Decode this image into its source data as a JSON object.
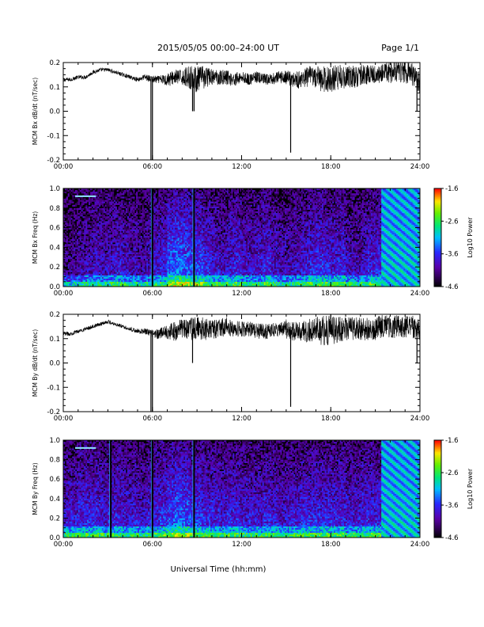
{
  "header": {
    "title": "2015/05/05  00:00–24:00 UT",
    "page": "Page 1/1"
  },
  "footer": {
    "xlabel": "Universal Time (hh:mm)"
  },
  "chart_data": [
    {
      "type": "line",
      "ylabel": "MCM Bx dB/dt (nT/sec)",
      "xlim": [
        0,
        24
      ],
      "ylim": [
        -0.2,
        0.2
      ],
      "x_ticks": [
        "00:00",
        "06:00",
        "12:00",
        "18:00",
        "24:00"
      ],
      "y_ticks": [
        "-0.2",
        "-0.1",
        "0.0",
        "0.1",
        "0.2"
      ],
      "series": [
        {
          "x": [
            0,
            0.5,
            1,
            1.5,
            2,
            2.5,
            3,
            3.5,
            4,
            4.5,
            5,
            5.5,
            6,
            6.5,
            7,
            7.5,
            8,
            8.5,
            9,
            9.5,
            10,
            10.5,
            11,
            11.5,
            12,
            12.5,
            13,
            13.5,
            14,
            14.5,
            15,
            15.5,
            16,
            16.5,
            17,
            17.5,
            18,
            18.5,
            19,
            19.5,
            20,
            20.5,
            21,
            21.5,
            22,
            22.5,
            23,
            23.5,
            24
          ],
          "y": [
            0.13,
            0.13,
            0.14,
            0.14,
            0.16,
            0.17,
            0.17,
            0.16,
            0.15,
            0.14,
            0.13,
            0.14,
            0.13,
            0.13,
            0.13,
            0.14,
            0.14,
            0.14,
            0.13,
            0.14,
            0.14,
            0.14,
            0.14,
            0.13,
            0.14,
            0.13,
            0.14,
            0.13,
            0.13,
            0.14,
            0.14,
            0.13,
            0.13,
            0.14,
            0.14,
            0.13,
            0.13,
            0.14,
            0.14,
            0.14,
            0.15,
            0.15,
            0.15,
            0.16,
            0.16,
            0.17,
            0.16,
            0.15,
            0.12
          ],
          "noise": [
            0.005,
            0.005,
            0.005,
            0.005,
            0.005,
            0.005,
            0.005,
            0.005,
            0.005,
            0.005,
            0.006,
            0.008,
            0.01,
            0.01,
            0.018,
            0.02,
            0.02,
            0.03,
            0.035,
            0.03,
            0.02,
            0.02,
            0.02,
            0.018,
            0.015,
            0.015,
            0.015,
            0.015,
            0.015,
            0.015,
            0.02,
            0.02,
            0.025,
            0.028,
            0.03,
            0.035,
            0.035,
            0.035,
            0.03,
            0.03,
            0.028,
            0.025,
            0.025,
            0.025,
            0.03,
            0.03,
            0.03,
            0.03,
            0.03
          ],
          "spikes": [
            [
              5.9,
              -0.2
            ],
            [
              6.0,
              -0.2
            ],
            [
              8.7,
              0.0
            ],
            [
              8.8,
              0.0
            ],
            [
              15.3,
              -0.17
            ],
            [
              23.8,
              0.0
            ]
          ]
        }
      ]
    },
    {
      "type": "heatmap",
      "ylabel": "MCM Bx Freq (Hz)",
      "xlim": [
        0,
        24
      ],
      "ylim": [
        0,
        1.0
      ],
      "x_ticks": [
        "00:00",
        "06:00",
        "12:00",
        "18:00",
        "24:00"
      ],
      "y_ticks": [
        "0.0",
        "0.2",
        "0.4",
        "0.6",
        "0.8",
        "1.0"
      ],
      "colorbar": {
        "label": "Log10 Power",
        "ticks": [
          "-1.6",
          "-2.6",
          "-3.6",
          "-4.6"
        ],
        "range": [
          -4.6,
          -1.6
        ]
      },
      "time_activity": [
        0.3,
        0.35,
        0.4,
        0.45,
        0.5,
        0.45,
        0.5,
        0.55,
        0.5,
        0.45,
        0.4,
        0.45,
        0.55,
        0.6,
        0.8,
        0.85,
        0.8,
        0.75,
        0.7,
        0.6,
        0.55,
        0.5,
        0.55,
        0.6,
        0.5,
        0.5,
        0.55,
        0.6,
        0.5,
        0.45,
        0.45,
        0.5,
        0.55,
        0.6,
        0.65,
        0.6,
        0.55,
        0.6,
        0.5,
        0.45,
        0.5,
        0.6,
        0.6,
        0.55,
        0.5,
        0.5,
        0.5,
        0.5
      ],
      "artifact_start_h": 21.4,
      "vertical_lines_h": [
        6.0,
        8.8
      ],
      "tone": {
        "x0_h": 0.8,
        "x1_h": 2.2,
        "freq_hz": 0.92
      }
    },
    {
      "type": "line",
      "ylabel": "MCM By dB/dt (nT/sec)",
      "xlim": [
        0,
        24
      ],
      "ylim": [
        -0.2,
        0.2
      ],
      "x_ticks": [
        "00:00",
        "06:00",
        "12:00",
        "18:00",
        "24:00"
      ],
      "y_ticks": [
        "-0.2",
        "-0.1",
        "0.0",
        "0.1",
        "0.2"
      ],
      "series": [
        {
          "x": [
            0,
            0.5,
            1,
            1.5,
            2,
            2.5,
            3,
            3.5,
            4,
            4.5,
            5,
            5.5,
            6,
            6.5,
            7,
            7.5,
            8,
            8.5,
            9,
            9.5,
            10,
            10.5,
            11,
            11.5,
            12,
            12.5,
            13,
            13.5,
            14,
            14.5,
            15,
            15.5,
            16,
            16.5,
            17,
            17.5,
            18,
            18.5,
            19,
            19.5,
            20,
            20.5,
            21,
            21.5,
            22,
            22.5,
            23,
            23.5,
            24
          ],
          "y": [
            0.12,
            0.12,
            0.13,
            0.14,
            0.15,
            0.16,
            0.17,
            0.16,
            0.15,
            0.14,
            0.13,
            0.13,
            0.12,
            0.12,
            0.13,
            0.13,
            0.14,
            0.14,
            0.14,
            0.14,
            0.14,
            0.14,
            0.15,
            0.14,
            0.14,
            0.14,
            0.13,
            0.13,
            0.13,
            0.14,
            0.14,
            0.13,
            0.13,
            0.13,
            0.14,
            0.13,
            0.13,
            0.14,
            0.14,
            0.14,
            0.14,
            0.14,
            0.14,
            0.15,
            0.15,
            0.15,
            0.15,
            0.15,
            0.14
          ],
          "noise": [
            0.005,
            0.005,
            0.005,
            0.005,
            0.005,
            0.005,
            0.005,
            0.005,
            0.005,
            0.005,
            0.006,
            0.008,
            0.01,
            0.015,
            0.02,
            0.025,
            0.025,
            0.03,
            0.03,
            0.03,
            0.025,
            0.025,
            0.025,
            0.02,
            0.02,
            0.02,
            0.02,
            0.02,
            0.02,
            0.02,
            0.025,
            0.025,
            0.025,
            0.03,
            0.035,
            0.04,
            0.04,
            0.035,
            0.03,
            0.03,
            0.03,
            0.03,
            0.03,
            0.03,
            0.03,
            0.03,
            0.03,
            0.03,
            0.03
          ],
          "spikes": [
            [
              5.9,
              -0.2
            ],
            [
              6.0,
              -0.2
            ],
            [
              8.7,
              0.0
            ],
            [
              15.3,
              -0.18
            ],
            [
              23.8,
              0.0
            ]
          ]
        }
      ]
    },
    {
      "type": "heatmap",
      "ylabel": "MCM By Freq (Hz)",
      "xlim": [
        0,
        24
      ],
      "ylim": [
        0,
        1.0
      ],
      "x_ticks": [
        "00:00",
        "06:00",
        "12:00",
        "18:00",
        "24:00"
      ],
      "y_ticks": [
        "0.0",
        "0.2",
        "0.4",
        "0.6",
        "0.8",
        "1.0"
      ],
      "colorbar": {
        "label": "Log10 Power",
        "ticks": [
          "-1.6",
          "-2.6",
          "-3.6",
          "-4.6"
        ],
        "range": [
          -4.6,
          -1.6
        ]
      },
      "time_activity": [
        0.55,
        0.55,
        0.6,
        0.6,
        0.6,
        0.55,
        0.6,
        0.6,
        0.55,
        0.55,
        0.5,
        0.55,
        0.6,
        0.65,
        0.75,
        0.8,
        0.75,
        0.7,
        0.65,
        0.6,
        0.6,
        0.55,
        0.6,
        0.6,
        0.55,
        0.55,
        0.55,
        0.6,
        0.55,
        0.5,
        0.55,
        0.55,
        0.6,
        0.6,
        0.6,
        0.6,
        0.6,
        0.6,
        0.55,
        0.55,
        0.6,
        0.6,
        0.6,
        0.6,
        0.6,
        0.6,
        0.6,
        0.6
      ],
      "artifact_start_h": 21.4,
      "vertical_lines_h": [
        3.2,
        6.0,
        8.8
      ],
      "tone": {
        "x0_h": 0.8,
        "x1_h": 2.2,
        "freq_hz": 0.92
      }
    }
  ]
}
